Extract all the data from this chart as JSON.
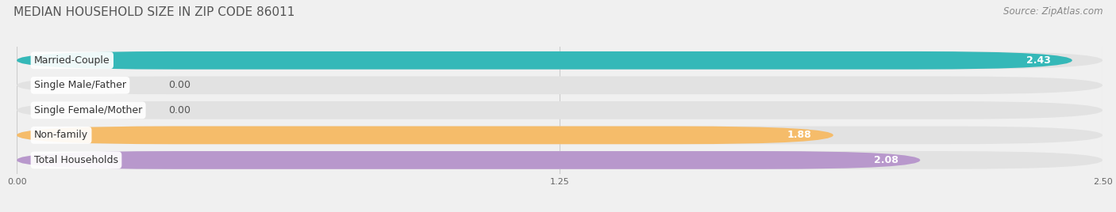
{
  "title": "MEDIAN HOUSEHOLD SIZE IN ZIP CODE 86011",
  "source": "Source: ZipAtlas.com",
  "categories": [
    "Married-Couple",
    "Single Male/Father",
    "Single Female/Mother",
    "Non-family",
    "Total Households"
  ],
  "values": [
    2.43,
    0.0,
    0.0,
    1.88,
    2.08
  ],
  "bar_colors": [
    "#35b8b8",
    "#aabfe8",
    "#f5a0b8",
    "#f5bc6a",
    "#b898cc"
  ],
  "xlim": [
    0,
    2.5
  ],
  "xticks": [
    0.0,
    1.25,
    2.5
  ],
  "xtick_labels": [
    "0.00",
    "1.25",
    "2.50"
  ],
  "title_fontsize": 11,
  "source_fontsize": 8.5,
  "label_fontsize": 9,
  "value_fontsize": 9,
  "background_color": "#f0f0f0",
  "bar_bg_color": "#e2e2e2",
  "bar_height": 0.72,
  "bar_gap": 0.28
}
